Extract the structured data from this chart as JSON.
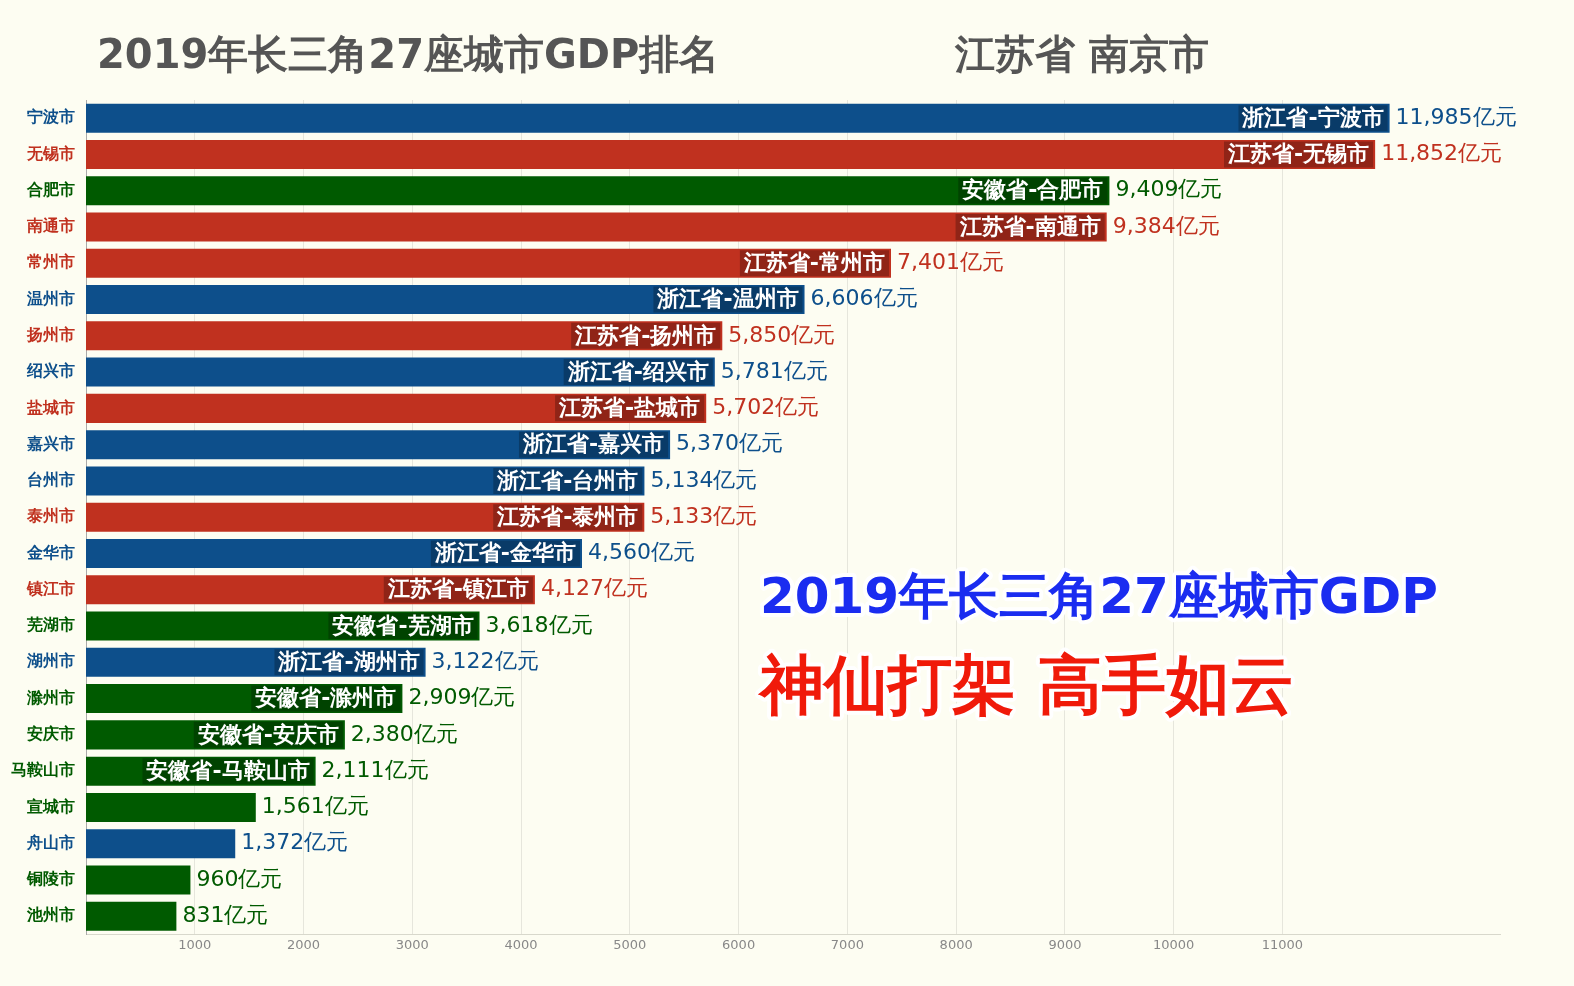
{
  "chart_data": {
    "type": "bar",
    "orientation": "horizontal",
    "title": "2019年长三角27座城市GDP排名",
    "subtitle": "江苏省 南京市",
    "categories": [
      "宁波市",
      "无锡市",
      "合肥市",
      "南通市",
      "常州市",
      "温州市",
      "扬州市",
      "绍兴市",
      "盐城市",
      "嘉兴市",
      "台州市",
      "泰州市",
      "金华市",
      "镇江市",
      "芜湖市",
      "湖州市",
      "滁州市",
      "安庆市",
      "马鞍山市",
      "宣城市",
      "舟山市",
      "铜陵市",
      "池州市"
    ],
    "values": [
      11985,
      11852,
      9409,
      9384,
      7401,
      6606,
      5850,
      5781,
      5702,
      5370,
      5134,
      5133,
      4560,
      4127,
      3618,
      3122,
      2909,
      2380,
      2111,
      1561,
      1372,
      960,
      831
    ],
    "colors": [
      "#0d4f8b",
      "#c0311f",
      "#005a00",
      "#c0311f",
      "#c0311f",
      "#0d4f8b",
      "#c0311f",
      "#0d4f8b",
      "#c0311f",
      "#0d4f8b",
      "#0d4f8b",
      "#c0311f",
      "#0d4f8b",
      "#c0311f",
      "#005a00",
      "#0d4f8b",
      "#005a00",
      "#005a00",
      "#005a00",
      "#005a00",
      "#0d4f8b",
      "#005a00",
      "#005a00"
    ],
    "value_labels": [
      "11,985亿元",
      "11,852亿元",
      "9,409亿元",
      "9,384亿元",
      "7,401亿元",
      "6,606亿元",
      "5,850亿元",
      "5,781亿元",
      "5,702亿元",
      "5,370亿元",
      "5,134亿元",
      "5,133亿元",
      "4,560亿元",
      "4,127亿元",
      "3,618亿元",
      "3,122亿元",
      "2,909亿元",
      "2,380亿元",
      "2,111亿元",
      "1,561亿元",
      "1,372亿元",
      "960亿元",
      "831亿元"
    ],
    "xlim": [
      0,
      13000
    ],
    "xticks": [
      1000,
      2000,
      3000,
      4000,
      5000,
      6000,
      7000,
      8000,
      9000,
      10000,
      11000
    ],
    "grid": "x",
    "legend": false,
    "annotations": [
      {
        "text": "浙江省-宁波市",
        "x": 11985,
        "y": "宁波市"
      },
      {
        "text": "江苏省-无锡市",
        "x": 11852,
        "y": "无锡市"
      },
      {
        "text": "安徽省-合肥市",
        "x": 9409,
        "y": "合肥市"
      },
      {
        "text": "江苏省-南通市",
        "x": 9384,
        "y": "南通市"
      },
      {
        "text": "江苏省-常州市",
        "x": 7401,
        "y": "常州市"
      },
      {
        "text": "浙江省-温州市",
        "x": 6606,
        "y": "温州市"
      },
      {
        "text": "江苏省-扬州市",
        "x": 5850,
        "y": "扬州市"
      },
      {
        "text": "浙江省-绍兴市",
        "x": 5781,
        "y": "绍兴市"
      },
      {
        "text": "江苏省-盐城市",
        "x": 5702,
        "y": "盐城市"
      },
      {
        "text": "浙江省-嘉兴市",
        "x": 5370,
        "y": "嘉兴市"
      },
      {
        "text": "浙江省-台州市",
        "x": 5134,
        "y": "台州市"
      },
      {
        "text": "江苏省-泰州市",
        "x": 5133,
        "y": "泰州市"
      },
      {
        "text": "浙江省-金华市",
        "x": 4560,
        "y": "金华市"
      },
      {
        "text": "江苏省-镇江市",
        "x": 4127,
        "y": "镇江市"
      },
      {
        "text": "安徽省-芜湖市",
        "x": 3618,
        "y": "芜湖市"
      },
      {
        "text": "浙江省-湖州市",
        "x": 3122,
        "y": "湖州市"
      },
      {
        "text": "安徽省-滁州市",
        "x": 2909,
        "y": "滁州市"
      },
      {
        "text": "安徽省-安庆市",
        "x": 2380,
        "y": "安庆市"
      },
      {
        "text": "安徽省-马鞍山市",
        "x": 2111,
        "y": "马鞍山市"
      },
      "2019年长三角27座城市GDP",
      "神仙打架 高手如云"
    ]
  }
}
